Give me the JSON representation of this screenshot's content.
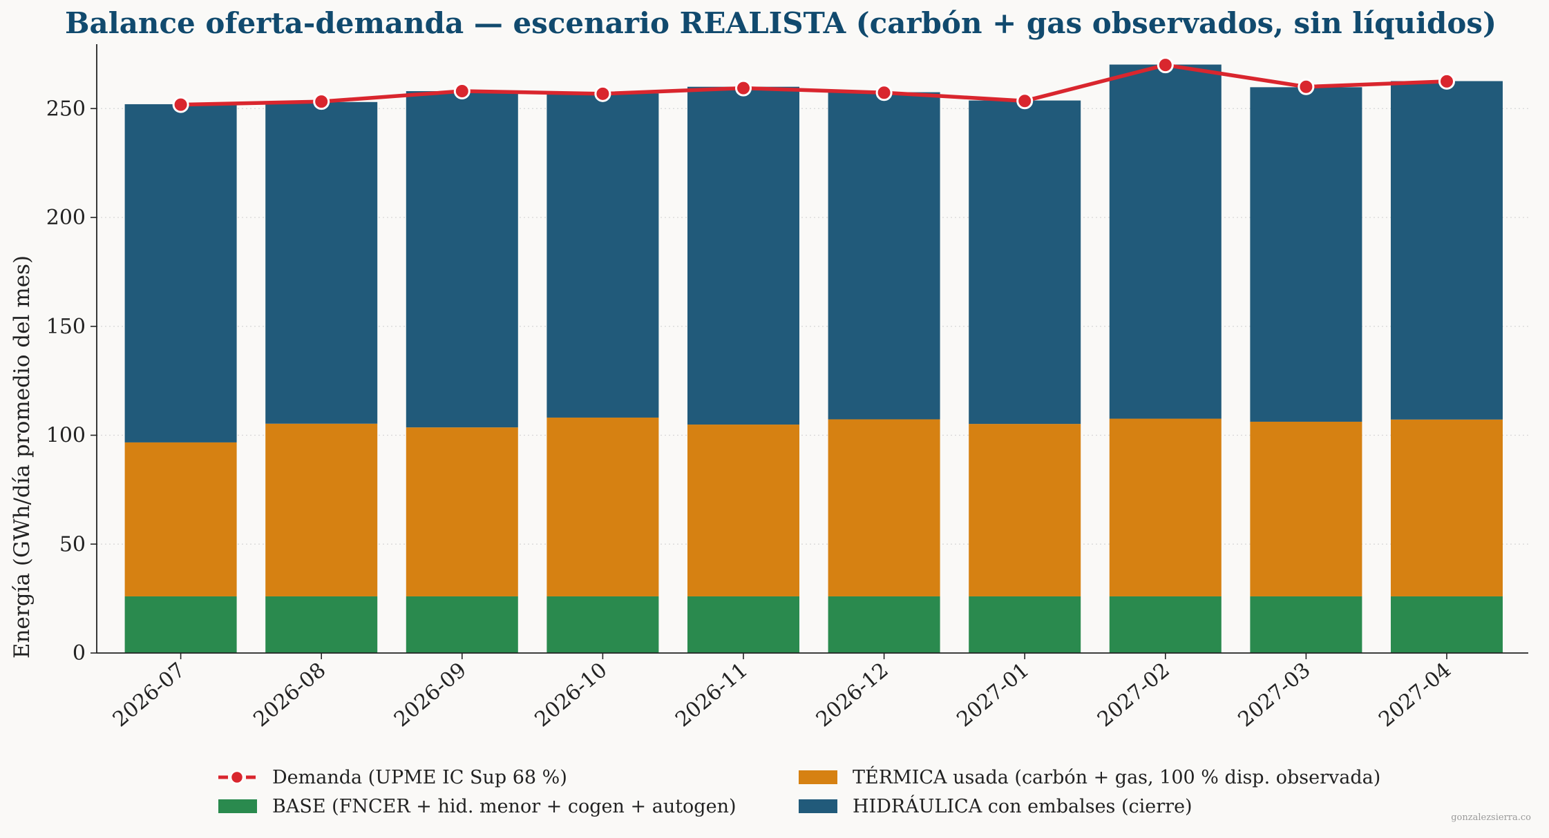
{
  "chart_data": {
    "type": "bar",
    "stacked": true,
    "title": "Balance oferta-demanda — escenario REALISTA (carbón + gas observados, sin líquidos)",
    "xlabel": "",
    "ylabel": "Energía (GWh/día promedio del mes)",
    "ylim": [
      0,
      284
    ],
    "yticks": [
      0,
      50,
      100,
      150,
      200,
      250
    ],
    "grid": "horizontal dotted",
    "legend_position": "bottom",
    "categories": [
      "2026-07",
      "2026-08",
      "2026-09",
      "2026-10",
      "2026-11",
      "2026-12",
      "2027-01",
      "2027-02",
      "2027-03",
      "2027-04"
    ],
    "series": [
      {
        "name": "BASE (FNCER + hid. menor + cogen + autogen)",
        "color": "#2a8a4e",
        "values": [
          26,
          26,
          26,
          26,
          26,
          26,
          26,
          26,
          26,
          26
        ]
      },
      {
        "name": "TÉRMICA usada (carbón + gas, 100 % disp. observada)",
        "color": "#d68112",
        "values": [
          70.7,
          79.3,
          77.6,
          82.1,
          78.9,
          81.3,
          79.2,
          81.6,
          80.2,
          81.2
        ]
      },
      {
        "name": "HIDRÁULICA con embalses (cierre)",
        "color": "#215a7a",
        "values": [
          155.3,
          147.7,
          154.4,
          148.9,
          155.1,
          150.2,
          148.5,
          162.6,
          153.6,
          155.4
        ]
      }
    ],
    "line": {
      "name": "Demanda (UPME IC Sup 68 %)",
      "color": "#d9262e",
      "values": [
        251.8,
        253.2,
        258.0,
        256.8,
        259.4,
        257.3,
        253.5,
        270.0,
        260.0,
        262.5
      ]
    },
    "credit": "gonzalezsierra.co"
  }
}
